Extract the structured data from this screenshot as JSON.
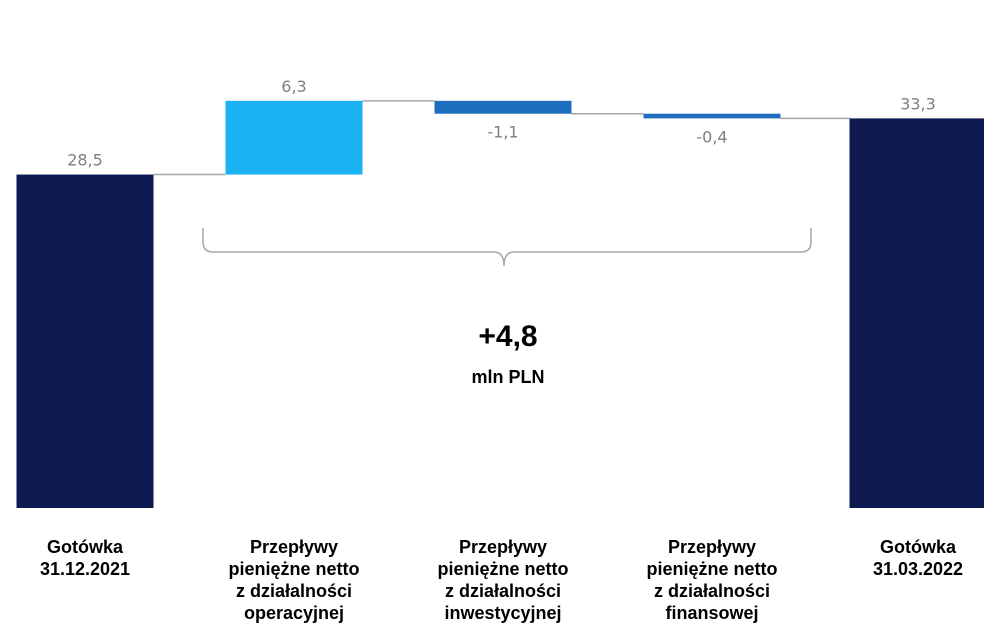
{
  "chart_data": {
    "type": "bar",
    "subtype": "waterfall",
    "title": "",
    "xlabel": "",
    "ylabel": "",
    "ylim": [
      0,
      35
    ],
    "grid": false,
    "categories": [
      [
        "Gotówka",
        "31.12.2021"
      ],
      [
        "Przepływy",
        "pieniężne netto",
        "z działalności",
        "operacyjnej"
      ],
      [
        "Przepływy",
        "pieniężne netto",
        "z działalności",
        "inwestycyjnej"
      ],
      [
        "Przepływy",
        "pieniężne netto",
        "z działalności",
        "finansowej"
      ],
      [
        "Gotówka",
        "31.03.2022"
      ]
    ],
    "values": [
      28.5,
      6.3,
      -1.1,
      -0.4,
      33.3
    ],
    "value_labels": [
      "28,5",
      "6,3",
      "-1,1",
      "-0,4",
      "33,3"
    ],
    "bar_kinds": [
      "total",
      "delta",
      "delta",
      "delta",
      "total"
    ],
    "colors": {
      "total": "#0e1a4f",
      "increase": "#1ab2f0",
      "decrease": "#1f6fbf",
      "connector": "#a6a6a6",
      "value_label": "#7f7f7f",
      "brace": "#a6a6a6"
    },
    "annotation": {
      "value": "+4,8",
      "unit": "mln PLN"
    }
  }
}
